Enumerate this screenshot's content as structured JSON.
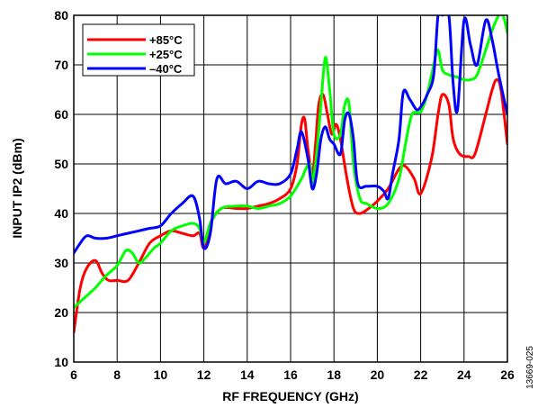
{
  "chart_data": {
    "type": "line",
    "title": "",
    "xlabel": "RF FREQUENCY (GHz)",
    "ylabel": "INPUT IP2 (dBm)",
    "xlim": [
      6,
      26
    ],
    "ylim": [
      10,
      80
    ],
    "x_ticks": [
      6,
      8,
      10,
      12,
      14,
      16,
      18,
      20,
      22,
      24,
      26
    ],
    "y_ticks": [
      10,
      20,
      30,
      40,
      50,
      60,
      70,
      80
    ],
    "grid": true,
    "legend_position": "top-left",
    "series": [
      {
        "name": "+85°C",
        "color": "#ff0000",
        "points": [
          [
            6,
            16
          ],
          [
            6.3,
            25
          ],
          [
            6.6,
            29
          ],
          [
            7,
            30.5
          ],
          [
            7.3,
            28
          ],
          [
            7.6,
            26.5
          ],
          [
            8,
            26.5
          ],
          [
            8.5,
            26.5
          ],
          [
            9,
            30
          ],
          [
            9.5,
            34
          ],
          [
            10,
            35.5
          ],
          [
            10.5,
            36.5
          ],
          [
            11,
            36
          ],
          [
            11.5,
            35.5
          ],
          [
            11.8,
            36
          ],
          [
            12,
            33
          ],
          [
            12.3,
            38
          ],
          [
            12.8,
            41
          ],
          [
            13.5,
            41
          ],
          [
            14,
            41
          ],
          [
            14.5,
            41.5
          ],
          [
            15,
            42
          ],
          [
            15.5,
            43
          ],
          [
            16,
            45
          ],
          [
            16.3,
            50
          ],
          [
            16.5,
            58
          ],
          [
            16.65,
            59
          ],
          [
            16.8,
            53
          ],
          [
            17,
            48
          ],
          [
            17.15,
            54
          ],
          [
            17.3,
            62
          ],
          [
            17.5,
            64
          ],
          [
            17.7,
            60
          ],
          [
            17.9,
            56
          ],
          [
            18.1,
            58
          ],
          [
            18.3,
            55
          ],
          [
            18.6,
            47
          ],
          [
            18.9,
            41
          ],
          [
            19.2,
            40
          ],
          [
            19.6,
            41
          ],
          [
            20,
            42.5
          ],
          [
            20.5,
            45
          ],
          [
            21,
            49
          ],
          [
            21.3,
            49.5
          ],
          [
            21.7,
            47
          ],
          [
            22,
            44
          ],
          [
            22.5,
            51
          ],
          [
            22.8,
            60
          ],
          [
            23,
            64
          ],
          [
            23.3,
            62
          ],
          [
            23.5,
            55
          ],
          [
            23.8,
            52
          ],
          [
            24.2,
            51.5
          ],
          [
            24.5,
            52
          ],
          [
            25,
            60
          ],
          [
            25.3,
            65
          ],
          [
            25.5,
            67
          ],
          [
            25.7,
            65
          ],
          [
            26,
            54
          ]
        ]
      },
      {
        "name": "+25°C",
        "color": "#00ff00",
        "points": [
          [
            6,
            21
          ],
          [
            6.5,
            23
          ],
          [
            7,
            25
          ],
          [
            7.5,
            27.5
          ],
          [
            8,
            29.5
          ],
          [
            8.4,
            32.5
          ],
          [
            8.7,
            32
          ],
          [
            9,
            30
          ],
          [
            9.3,
            31
          ],
          [
            9.7,
            33
          ],
          [
            10,
            34
          ],
          [
            10.5,
            36.5
          ],
          [
            11,
            37.5
          ],
          [
            11.5,
            38
          ],
          [
            11.8,
            37
          ],
          [
            12,
            34
          ],
          [
            12.3,
            38
          ],
          [
            12.8,
            41
          ],
          [
            13.5,
            41.5
          ],
          [
            14,
            41.5
          ],
          [
            14.5,
            41
          ],
          [
            15,
            41.5
          ],
          [
            15.5,
            42
          ],
          [
            16,
            43.5
          ],
          [
            16.5,
            47
          ],
          [
            16.7,
            49
          ],
          [
            16.9,
            50
          ],
          [
            17,
            46
          ],
          [
            17.2,
            52
          ],
          [
            17.4,
            62
          ],
          [
            17.6,
            71.5
          ],
          [
            17.8,
            65
          ],
          [
            18,
            56
          ],
          [
            18.3,
            56
          ],
          [
            18.5,
            62
          ],
          [
            18.7,
            62
          ],
          [
            18.9,
            50
          ],
          [
            19.2,
            43
          ],
          [
            19.5,
            42
          ],
          [
            20,
            41
          ],
          [
            20.5,
            42
          ],
          [
            21,
            47
          ],
          [
            21.3,
            54
          ],
          [
            21.6,
            60
          ],
          [
            22,
            60.5
          ],
          [
            22.3,
            64
          ],
          [
            22.6,
            70
          ],
          [
            22.8,
            73
          ],
          [
            23,
            69
          ],
          [
            23.3,
            68
          ],
          [
            23.7,
            67.5
          ],
          [
            24,
            67
          ],
          [
            24.3,
            67
          ],
          [
            24.6,
            68
          ],
          [
            25,
            73
          ],
          [
            25.3,
            77
          ],
          [
            25.6,
            80
          ],
          [
            25.8,
            80
          ],
          [
            26,
            76.5
          ]
        ]
      },
      {
        "name": "–40°C",
        "color": "#0000ff",
        "points": [
          [
            6,
            32
          ],
          [
            6.3,
            34
          ],
          [
            6.6,
            35.5
          ],
          [
            7,
            35
          ],
          [
            7.5,
            35
          ],
          [
            8,
            35.5
          ],
          [
            8.5,
            36
          ],
          [
            9,
            36.5
          ],
          [
            9.5,
            37
          ],
          [
            10,
            37.5
          ],
          [
            10.5,
            40
          ],
          [
            11,
            42
          ],
          [
            11.5,
            43.5
          ],
          [
            11.8,
            39
          ],
          [
            12,
            33
          ],
          [
            12.3,
            36
          ],
          [
            12.6,
            47
          ],
          [
            13,
            46
          ],
          [
            13.5,
            46.5
          ],
          [
            14,
            45
          ],
          [
            14.5,
            46.5
          ],
          [
            15,
            46
          ],
          [
            15.5,
            46
          ],
          [
            16,
            48
          ],
          [
            16.3,
            53
          ],
          [
            16.5,
            56.5
          ],
          [
            16.8,
            51
          ],
          [
            17,
            45
          ],
          [
            17.2,
            48
          ],
          [
            17.4,
            55
          ],
          [
            17.6,
            57.5
          ],
          [
            17.8,
            55
          ],
          [
            18,
            54
          ],
          [
            18.3,
            52
          ],
          [
            18.5,
            59
          ],
          [
            18.7,
            60
          ],
          [
            18.9,
            55
          ],
          [
            19.1,
            46
          ],
          [
            19.5,
            45.5
          ],
          [
            20,
            45.5
          ],
          [
            20.3,
            44.5
          ],
          [
            20.5,
            43
          ],
          [
            20.7,
            48
          ],
          [
            21,
            55
          ],
          [
            21.2,
            64.5
          ],
          [
            21.5,
            63
          ],
          [
            21.8,
            61
          ],
          [
            22,
            61.5
          ],
          [
            22.3,
            64
          ],
          [
            22.6,
            68
          ],
          [
            22.8,
            80
          ],
          [
            23,
            80
          ],
          [
            23.3,
            80
          ],
          [
            23.5,
            66
          ],
          [
            23.7,
            61
          ],
          [
            24,
            79
          ],
          [
            24.3,
            74
          ],
          [
            24.6,
            70
          ],
          [
            25,
            79
          ],
          [
            25.3,
            75
          ],
          [
            25.6,
            68
          ],
          [
            26,
            60
          ]
        ]
      }
    ]
  },
  "figure_id": "13669-025"
}
